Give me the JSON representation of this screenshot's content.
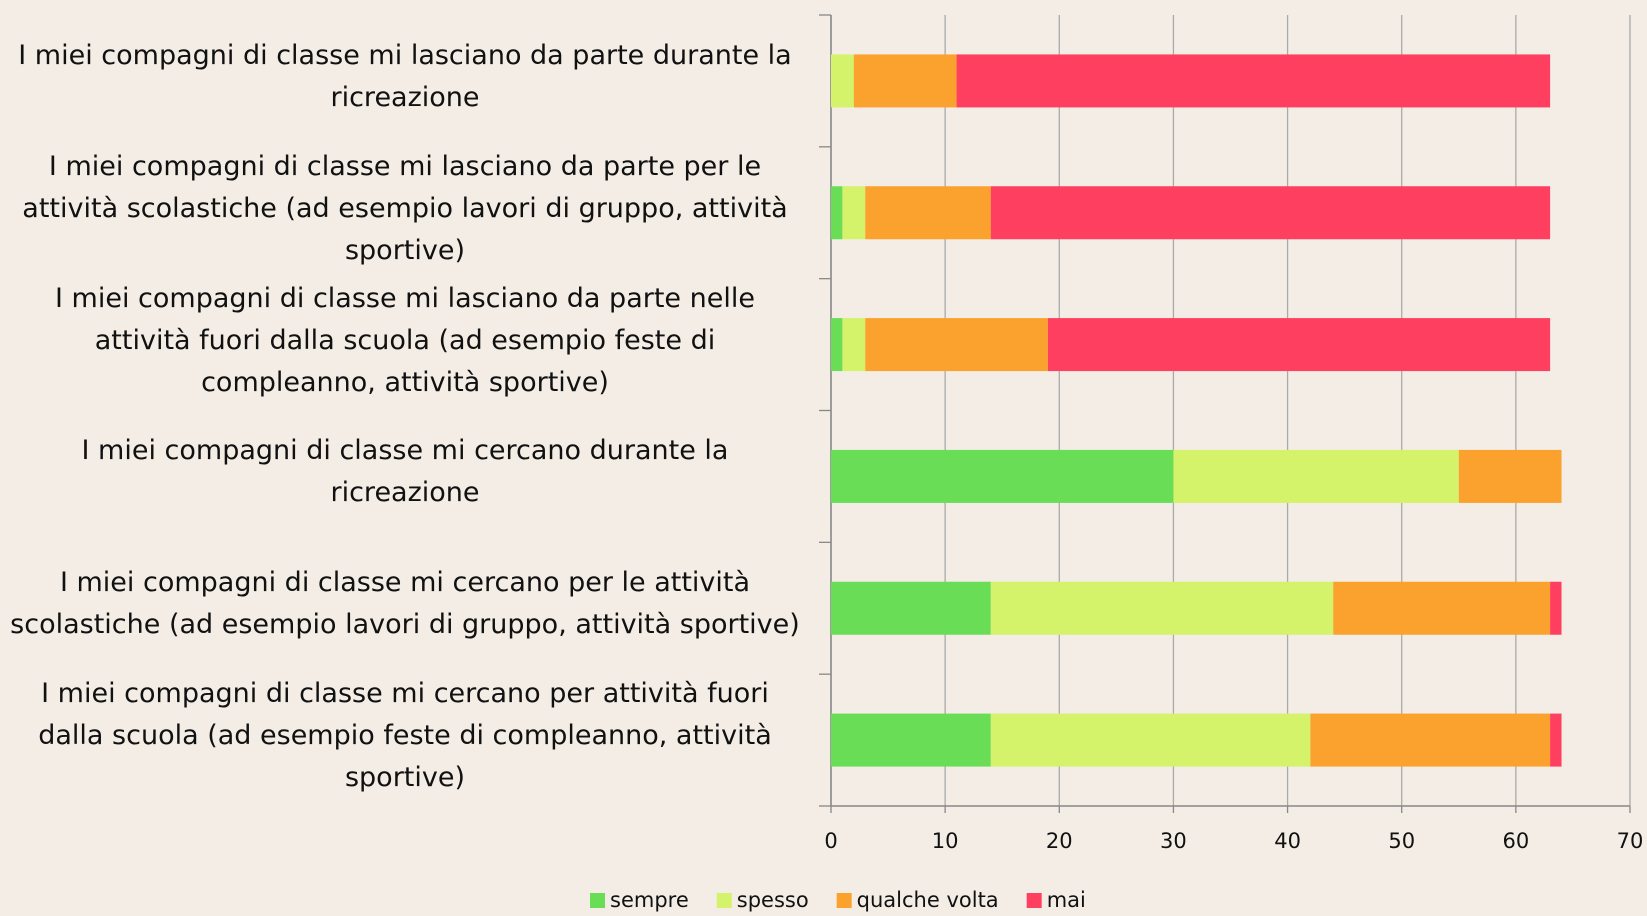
{
  "chart_data": {
    "type": "stacked-barh",
    "categories": [
      "I miei compagni di classe mi lasciano da parte durante la ricreazione",
      "I miei compagni di classe mi lasciano da parte per le attività scolastiche (ad esempio lavori di gruppo, attività sportive)",
      "I miei compagni di classe mi lasciano da parte nelle attività fuori dalla scuola (ad esempio feste di compleanno, attività sportive)",
      "I miei compagni di classe mi cercano durante la ricreazione",
      "I miei compagni di classe mi cercano per le attività scolastiche (ad esempio lavori di gruppo, attività sportive)",
      "I miei compagni di classe mi cercano per attività fuori dalla scuola (ad esempio feste di compleanno, attività sportive)"
    ],
    "series": [
      {
        "name": "sempre",
        "color": "#69dd56",
        "values": [
          0,
          1,
          1,
          30,
          14,
          14
        ]
      },
      {
        "name": "spesso",
        "color": "#d4f26a",
        "values": [
          2,
          2,
          2,
          25,
          30,
          28
        ]
      },
      {
        "name": "qualche volta",
        "color": "#fba12d",
        "values": [
          9,
          11,
          16,
          9,
          19,
          21
        ]
      },
      {
        "name": "mai",
        "color": "#ff3f5f",
        "values": [
          52,
          49,
          44,
          0,
          1,
          1
        ]
      }
    ],
    "xlim": [
      0,
      70
    ],
    "xticks": [
      0,
      10,
      20,
      30,
      40,
      50,
      60,
      70
    ],
    "grid": true,
    "legend": "bottom"
  }
}
